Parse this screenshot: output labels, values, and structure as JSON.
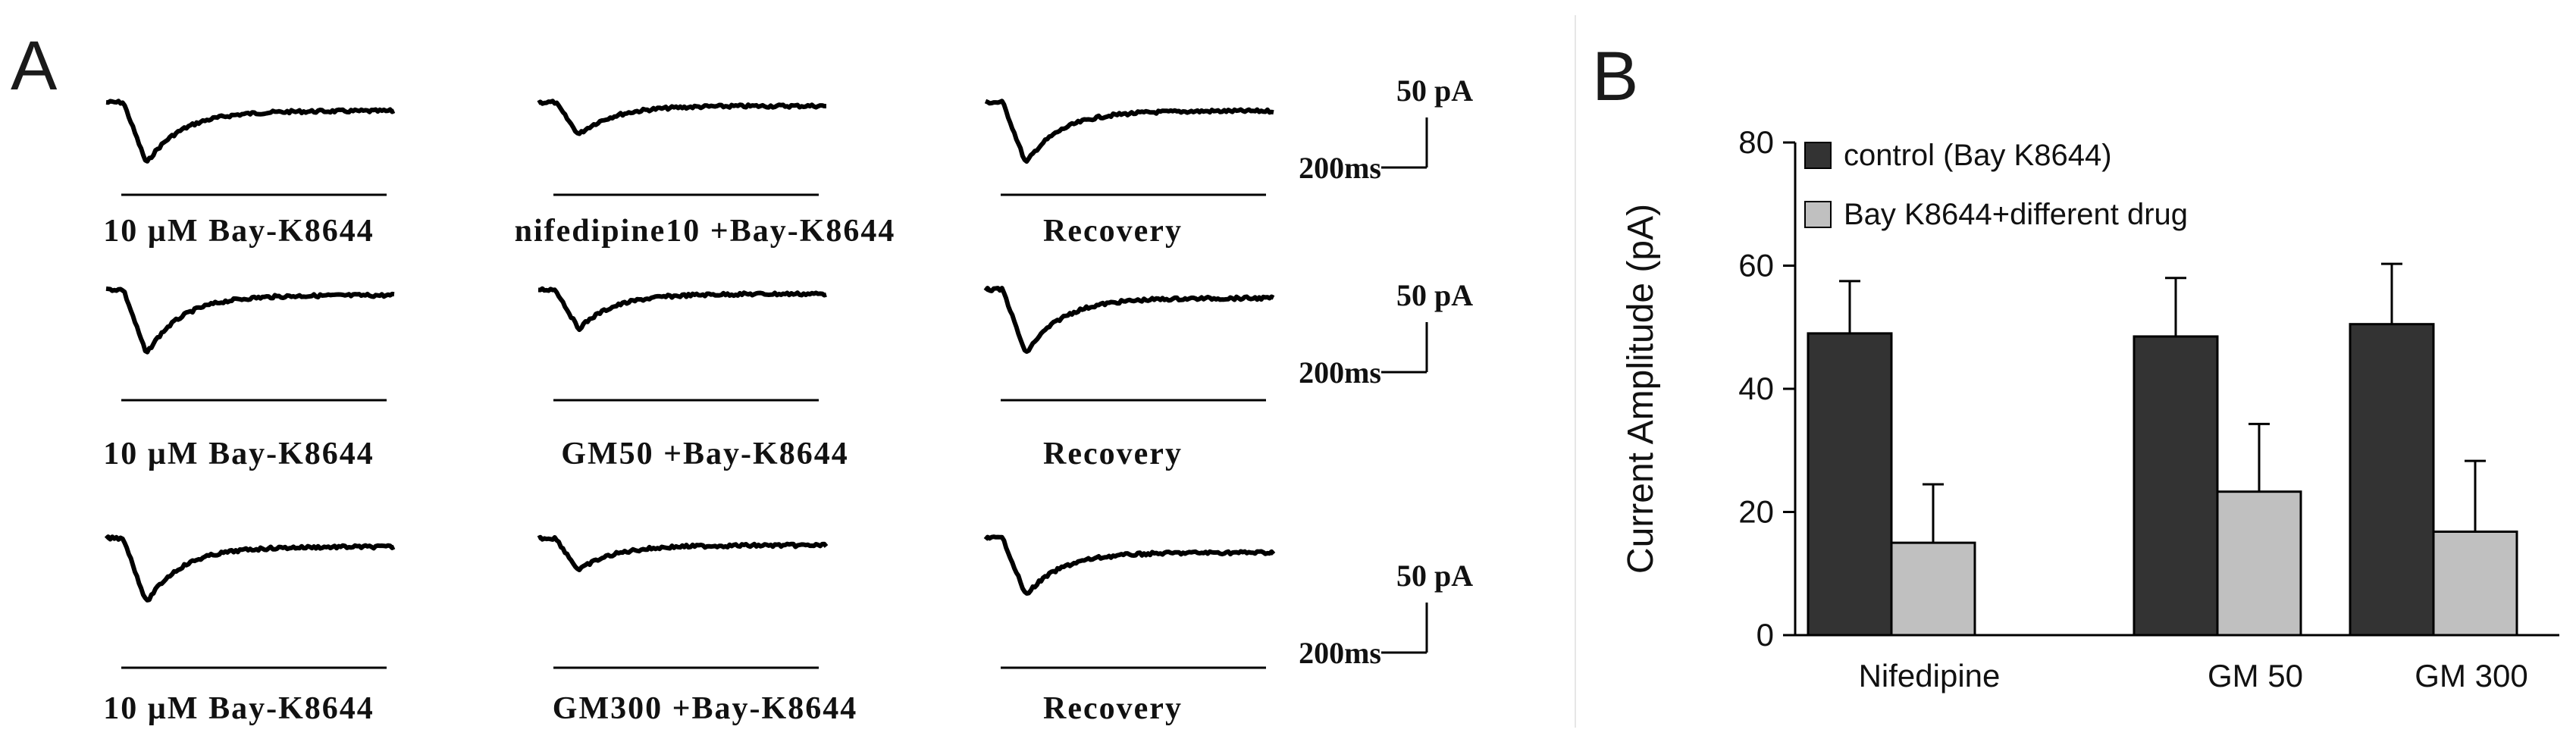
{
  "panels": {
    "a_label": "A",
    "b_label": "B"
  },
  "traces": {
    "rows": [
      {
        "cells": [
          {
            "label": "10 µM  Bay-K8644",
            "peak": 0.85,
            "tail": 0.12
          },
          {
            "label": "nifedipine10 +Bay-K8644",
            "peak": 0.45,
            "tail": 0.05
          },
          {
            "label": "Recovery",
            "peak": 0.85,
            "tail": 0.12
          }
        ],
        "scale": {
          "current": "50 pA",
          "time": "200ms"
        }
      },
      {
        "cells": [
          {
            "label": "10 µM  Bay-K8644",
            "peak": 0.9,
            "tail": 0.08
          },
          {
            "label": "GM50 +Bay-K8644",
            "peak": 0.55,
            "tail": 0.06
          },
          {
            "label": "Recovery",
            "peak": 0.9,
            "tail": 0.12
          }
        ],
        "scale": {
          "current": "50 pA",
          "time": "200ms"
        }
      },
      {
        "cells": [
          {
            "label": "10 µM  Bay-K8644",
            "peak": 0.9,
            "tail": 0.12
          },
          {
            "label": "GM300 +Bay-K8644",
            "peak": 0.45,
            "tail": 0.1
          },
          {
            "label": "Recovery",
            "peak": 0.8,
            "tail": 0.2
          }
        ],
        "scale": {
          "current": "50 pA",
          "time": "200ms"
        }
      }
    ]
  },
  "chart_data": {
    "type": "bar",
    "title": "",
    "xlabel": "",
    "ylabel": "Current Amplitude (pA)",
    "ylim": [
      0,
      80
    ],
    "yticks": [
      0,
      20,
      40,
      60,
      80
    ],
    "categories": [
      "Nifedipine",
      "GM 50",
      "GM 300"
    ],
    "series": [
      {
        "name": "control (Bay K8644)",
        "color": "#333333",
        "values": [
          49,
          48.5,
          50.5
        ],
        "errors": [
          8.5,
          9.5,
          9.8
        ]
      },
      {
        "name": "Bay K8644+different drug",
        "color": "#c0c0c0",
        "values": [
          15,
          23.3,
          16.8
        ],
        "errors": [
          9.5,
          11,
          11.5
        ]
      }
    ],
    "legend": "top-left"
  }
}
